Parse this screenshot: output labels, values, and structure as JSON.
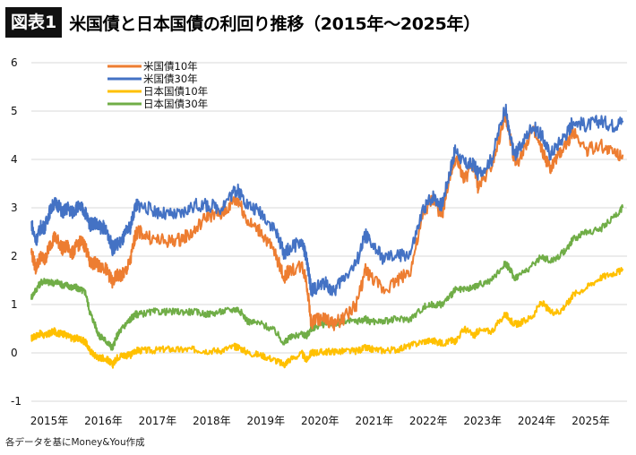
{
  "header": {
    "figure_tag": "図表1",
    "title": "米国債と日本国債の利回り推移（2015年〜2025年）"
  },
  "source": "各データを基にMoney&You作成",
  "colors": {
    "us10": "#ED7D31",
    "us30": "#4472C4",
    "jp10": "#FFC000",
    "jp30": "#70AD47",
    "grid": "#d9d9d9"
  },
  "chart_data": {
    "type": "line",
    "ylim": [
      -1,
      6
    ],
    "xlim": [
      2015,
      2026
    ],
    "yticks": [
      "-1",
      "0",
      "1",
      "2",
      "3",
      "4",
      "5",
      "6"
    ],
    "xticks": [
      "2015年",
      "2016年",
      "2017年",
      "2018年",
      "2019年",
      "2020年",
      "2021年",
      "2022年",
      "2023年",
      "2024年",
      "2025年"
    ],
    "grid": "horizontal",
    "legend_position": "top-left",
    "series": [
      {
        "name": "米国債10年",
        "key": "us10",
        "x": [
          2015.0,
          2015.08,
          2015.17,
          2015.25,
          2015.33,
          2015.42,
          2015.5,
          2015.58,
          2015.67,
          2015.75,
          2015.83,
          2015.92,
          2016.0,
          2016.08,
          2016.17,
          2016.25,
          2016.33,
          2016.42,
          2016.5,
          2016.58,
          2016.67,
          2016.75,
          2016.83,
          2016.92,
          2017.0,
          2017.25,
          2017.5,
          2017.75,
          2018.0,
          2018.25,
          2018.5,
          2018.75,
          2018.83,
          2019.0,
          2019.25,
          2019.5,
          2019.67,
          2019.75,
          2020.0,
          2020.08,
          2020.17,
          2020.25,
          2020.42,
          2020.58,
          2020.75,
          2021.0,
          2021.17,
          2021.25,
          2021.5,
          2021.75,
          2022.0,
          2022.25,
          2022.42,
          2022.58,
          2022.75,
          2022.83,
          2023.0,
          2023.17,
          2023.25,
          2023.5,
          2023.75,
          2023.83,
          2023.92,
          2024.0,
          2024.25,
          2024.42,
          2024.58,
          2024.75,
          2024.92,
          2025.0,
          2025.25,
          2025.5,
          2025.75,
          2025.92
        ],
        "y": [
          2.1,
          1.75,
          2.0,
          1.9,
          2.2,
          2.4,
          2.3,
          2.15,
          2.2,
          2.05,
          2.2,
          2.3,
          2.2,
          1.85,
          1.85,
          1.8,
          1.8,
          1.65,
          1.45,
          1.6,
          1.6,
          1.7,
          1.9,
          2.45,
          2.5,
          2.35,
          2.3,
          2.35,
          2.5,
          2.85,
          2.85,
          3.15,
          3.15,
          2.7,
          2.5,
          2.05,
          1.55,
          1.7,
          1.8,
          1.5,
          0.6,
          0.7,
          0.7,
          0.6,
          0.7,
          1.0,
          1.7,
          1.6,
          1.3,
          1.5,
          1.7,
          2.9,
          3.2,
          2.8,
          3.8,
          4.0,
          3.6,
          3.9,
          3.4,
          3.9,
          4.9,
          4.5,
          4.0,
          4.0,
          4.6,
          4.2,
          3.8,
          4.1,
          4.4,
          4.6,
          4.2,
          4.3,
          4.15,
          4.1
        ]
      },
      {
        "name": "米国債30年",
        "key": "us30",
        "x": [
          2015.0,
          2015.08,
          2015.17,
          2015.25,
          2015.33,
          2015.42,
          2015.5,
          2015.58,
          2015.67,
          2015.75,
          2015.83,
          2015.92,
          2016.0,
          2016.08,
          2016.17,
          2016.25,
          2016.33,
          2016.42,
          2016.5,
          2016.58,
          2016.67,
          2016.75,
          2016.83,
          2016.92,
          2017.0,
          2017.25,
          2017.5,
          2017.75,
          2018.0,
          2018.25,
          2018.5,
          2018.75,
          2018.83,
          2019.0,
          2019.25,
          2019.5,
          2019.67,
          2019.75,
          2020.0,
          2020.08,
          2020.17,
          2020.25,
          2020.42,
          2020.58,
          2020.75,
          2021.0,
          2021.17,
          2021.25,
          2021.5,
          2021.75,
          2022.0,
          2022.25,
          2022.42,
          2022.58,
          2022.75,
          2022.83,
          2023.0,
          2023.17,
          2023.25,
          2023.5,
          2023.75,
          2023.83,
          2023.92,
          2024.0,
          2024.25,
          2024.42,
          2024.58,
          2024.75,
          2024.92,
          2025.0,
          2025.25,
          2025.5,
          2025.75,
          2025.92
        ],
        "y": [
          2.7,
          2.3,
          2.6,
          2.6,
          2.9,
          3.1,
          3.05,
          2.9,
          3.0,
          2.9,
          3.0,
          3.0,
          2.9,
          2.65,
          2.7,
          2.6,
          2.6,
          2.45,
          2.15,
          2.25,
          2.3,
          2.5,
          2.6,
          3.05,
          3.05,
          2.95,
          2.85,
          2.85,
          3.05,
          3.05,
          3.0,
          3.35,
          3.35,
          3.05,
          2.9,
          2.55,
          2.05,
          2.15,
          2.3,
          1.95,
          1.3,
          1.35,
          1.45,
          1.25,
          1.55,
          1.85,
          2.45,
          2.3,
          1.95,
          2.0,
          2.05,
          3.0,
          3.25,
          3.05,
          3.85,
          4.2,
          3.9,
          3.9,
          3.7,
          4.0,
          5.1,
          4.5,
          4.1,
          4.2,
          4.7,
          4.5,
          4.1,
          4.35,
          4.6,
          4.8,
          4.7,
          4.8,
          4.7,
          4.8
        ]
      },
      {
        "name": "日本国債10年",
        "key": "jp10",
        "x": [
          2015.0,
          2015.08,
          2015.17,
          2015.25,
          2015.33,
          2015.42,
          2015.5,
          2015.58,
          2015.67,
          2015.75,
          2015.83,
          2015.92,
          2016.0,
          2016.08,
          2016.17,
          2016.25,
          2016.33,
          2016.42,
          2016.5,
          2016.58,
          2016.67,
          2016.75,
          2016.83,
          2016.92,
          2017.0,
          2017.25,
          2017.5,
          2017.75,
          2018.0,
          2018.25,
          2018.5,
          2018.75,
          2018.83,
          2019.0,
          2019.25,
          2019.5,
          2019.67,
          2019.75,
          2020.0,
          2020.08,
          2020.17,
          2020.25,
          2020.42,
          2020.58,
          2020.75,
          2021.0,
          2021.17,
          2021.25,
          2021.5,
          2021.75,
          2022.0,
          2022.25,
          2022.42,
          2022.58,
          2022.75,
          2022.83,
          2023.0,
          2023.17,
          2023.25,
          2023.5,
          2023.75,
          2023.83,
          2023.92,
          2024.0,
          2024.25,
          2024.42,
          2024.58,
          2024.75,
          2024.92,
          2025.0,
          2025.25,
          2025.5,
          2025.75,
          2025.92
        ],
        "y": [
          0.3,
          0.35,
          0.4,
          0.35,
          0.4,
          0.45,
          0.4,
          0.4,
          0.35,
          0.3,
          0.3,
          0.28,
          0.22,
          0.05,
          -0.05,
          -0.1,
          -0.1,
          -0.15,
          -0.25,
          -0.1,
          -0.05,
          -0.05,
          -0.05,
          0.05,
          0.05,
          0.05,
          0.08,
          0.06,
          0.07,
          0.04,
          0.05,
          0.13,
          0.12,
          0.0,
          -0.05,
          -0.15,
          -0.25,
          -0.15,
          -0.02,
          -0.15,
          0.0,
          0.01,
          0.02,
          0.03,
          0.03,
          0.04,
          0.1,
          0.08,
          0.05,
          0.07,
          0.15,
          0.24,
          0.25,
          0.2,
          0.25,
          0.25,
          0.5,
          0.35,
          0.45,
          0.45,
          0.8,
          0.7,
          0.6,
          0.6,
          0.75,
          1.05,
          0.85,
          0.85,
          1.05,
          1.2,
          1.35,
          1.55,
          1.65,
          1.7
        ]
      },
      {
        "name": "日本国債30年",
        "key": "jp30",
        "x": [
          2015.0,
          2015.08,
          2015.17,
          2015.25,
          2015.33,
          2015.42,
          2015.5,
          2015.58,
          2015.67,
          2015.75,
          2015.83,
          2015.92,
          2016.0,
          2016.08,
          2016.17,
          2016.25,
          2016.33,
          2016.42,
          2016.5,
          2016.58,
          2016.67,
          2016.75,
          2016.83,
          2016.92,
          2017.0,
          2017.25,
          2017.5,
          2017.75,
          2018.0,
          2018.25,
          2018.5,
          2018.75,
          2018.83,
          2019.0,
          2019.25,
          2019.5,
          2019.67,
          2019.75,
          2020.0,
          2020.08,
          2020.17,
          2020.25,
          2020.42,
          2020.58,
          2020.75,
          2021.0,
          2021.17,
          2021.25,
          2021.5,
          2021.75,
          2022.0,
          2022.25,
          2022.42,
          2022.58,
          2022.75,
          2022.83,
          2023.0,
          2023.17,
          2023.25,
          2023.5,
          2023.75,
          2023.83,
          2023.92,
          2024.0,
          2024.25,
          2024.42,
          2024.58,
          2024.75,
          2024.92,
          2025.0,
          2025.25,
          2025.5,
          2025.75,
          2025.92
        ],
        "y": [
          1.15,
          1.3,
          1.45,
          1.5,
          1.45,
          1.45,
          1.45,
          1.4,
          1.4,
          1.35,
          1.35,
          1.3,
          1.25,
          0.85,
          0.6,
          0.35,
          0.3,
          0.2,
          0.1,
          0.35,
          0.5,
          0.6,
          0.7,
          0.8,
          0.8,
          0.85,
          0.85,
          0.85,
          0.85,
          0.8,
          0.85,
          0.9,
          0.9,
          0.65,
          0.6,
          0.45,
          0.2,
          0.3,
          0.4,
          0.35,
          0.5,
          0.55,
          0.6,
          0.6,
          0.65,
          0.65,
          0.7,
          0.65,
          0.65,
          0.7,
          0.7,
          0.95,
          1.0,
          1.0,
          1.2,
          1.3,
          1.3,
          1.35,
          1.4,
          1.5,
          1.85,
          1.75,
          1.55,
          1.6,
          1.8,
          2.0,
          1.9,
          2.0,
          2.2,
          2.35,
          2.5,
          2.55,
          2.8,
          3.0
        ]
      }
    ]
  }
}
